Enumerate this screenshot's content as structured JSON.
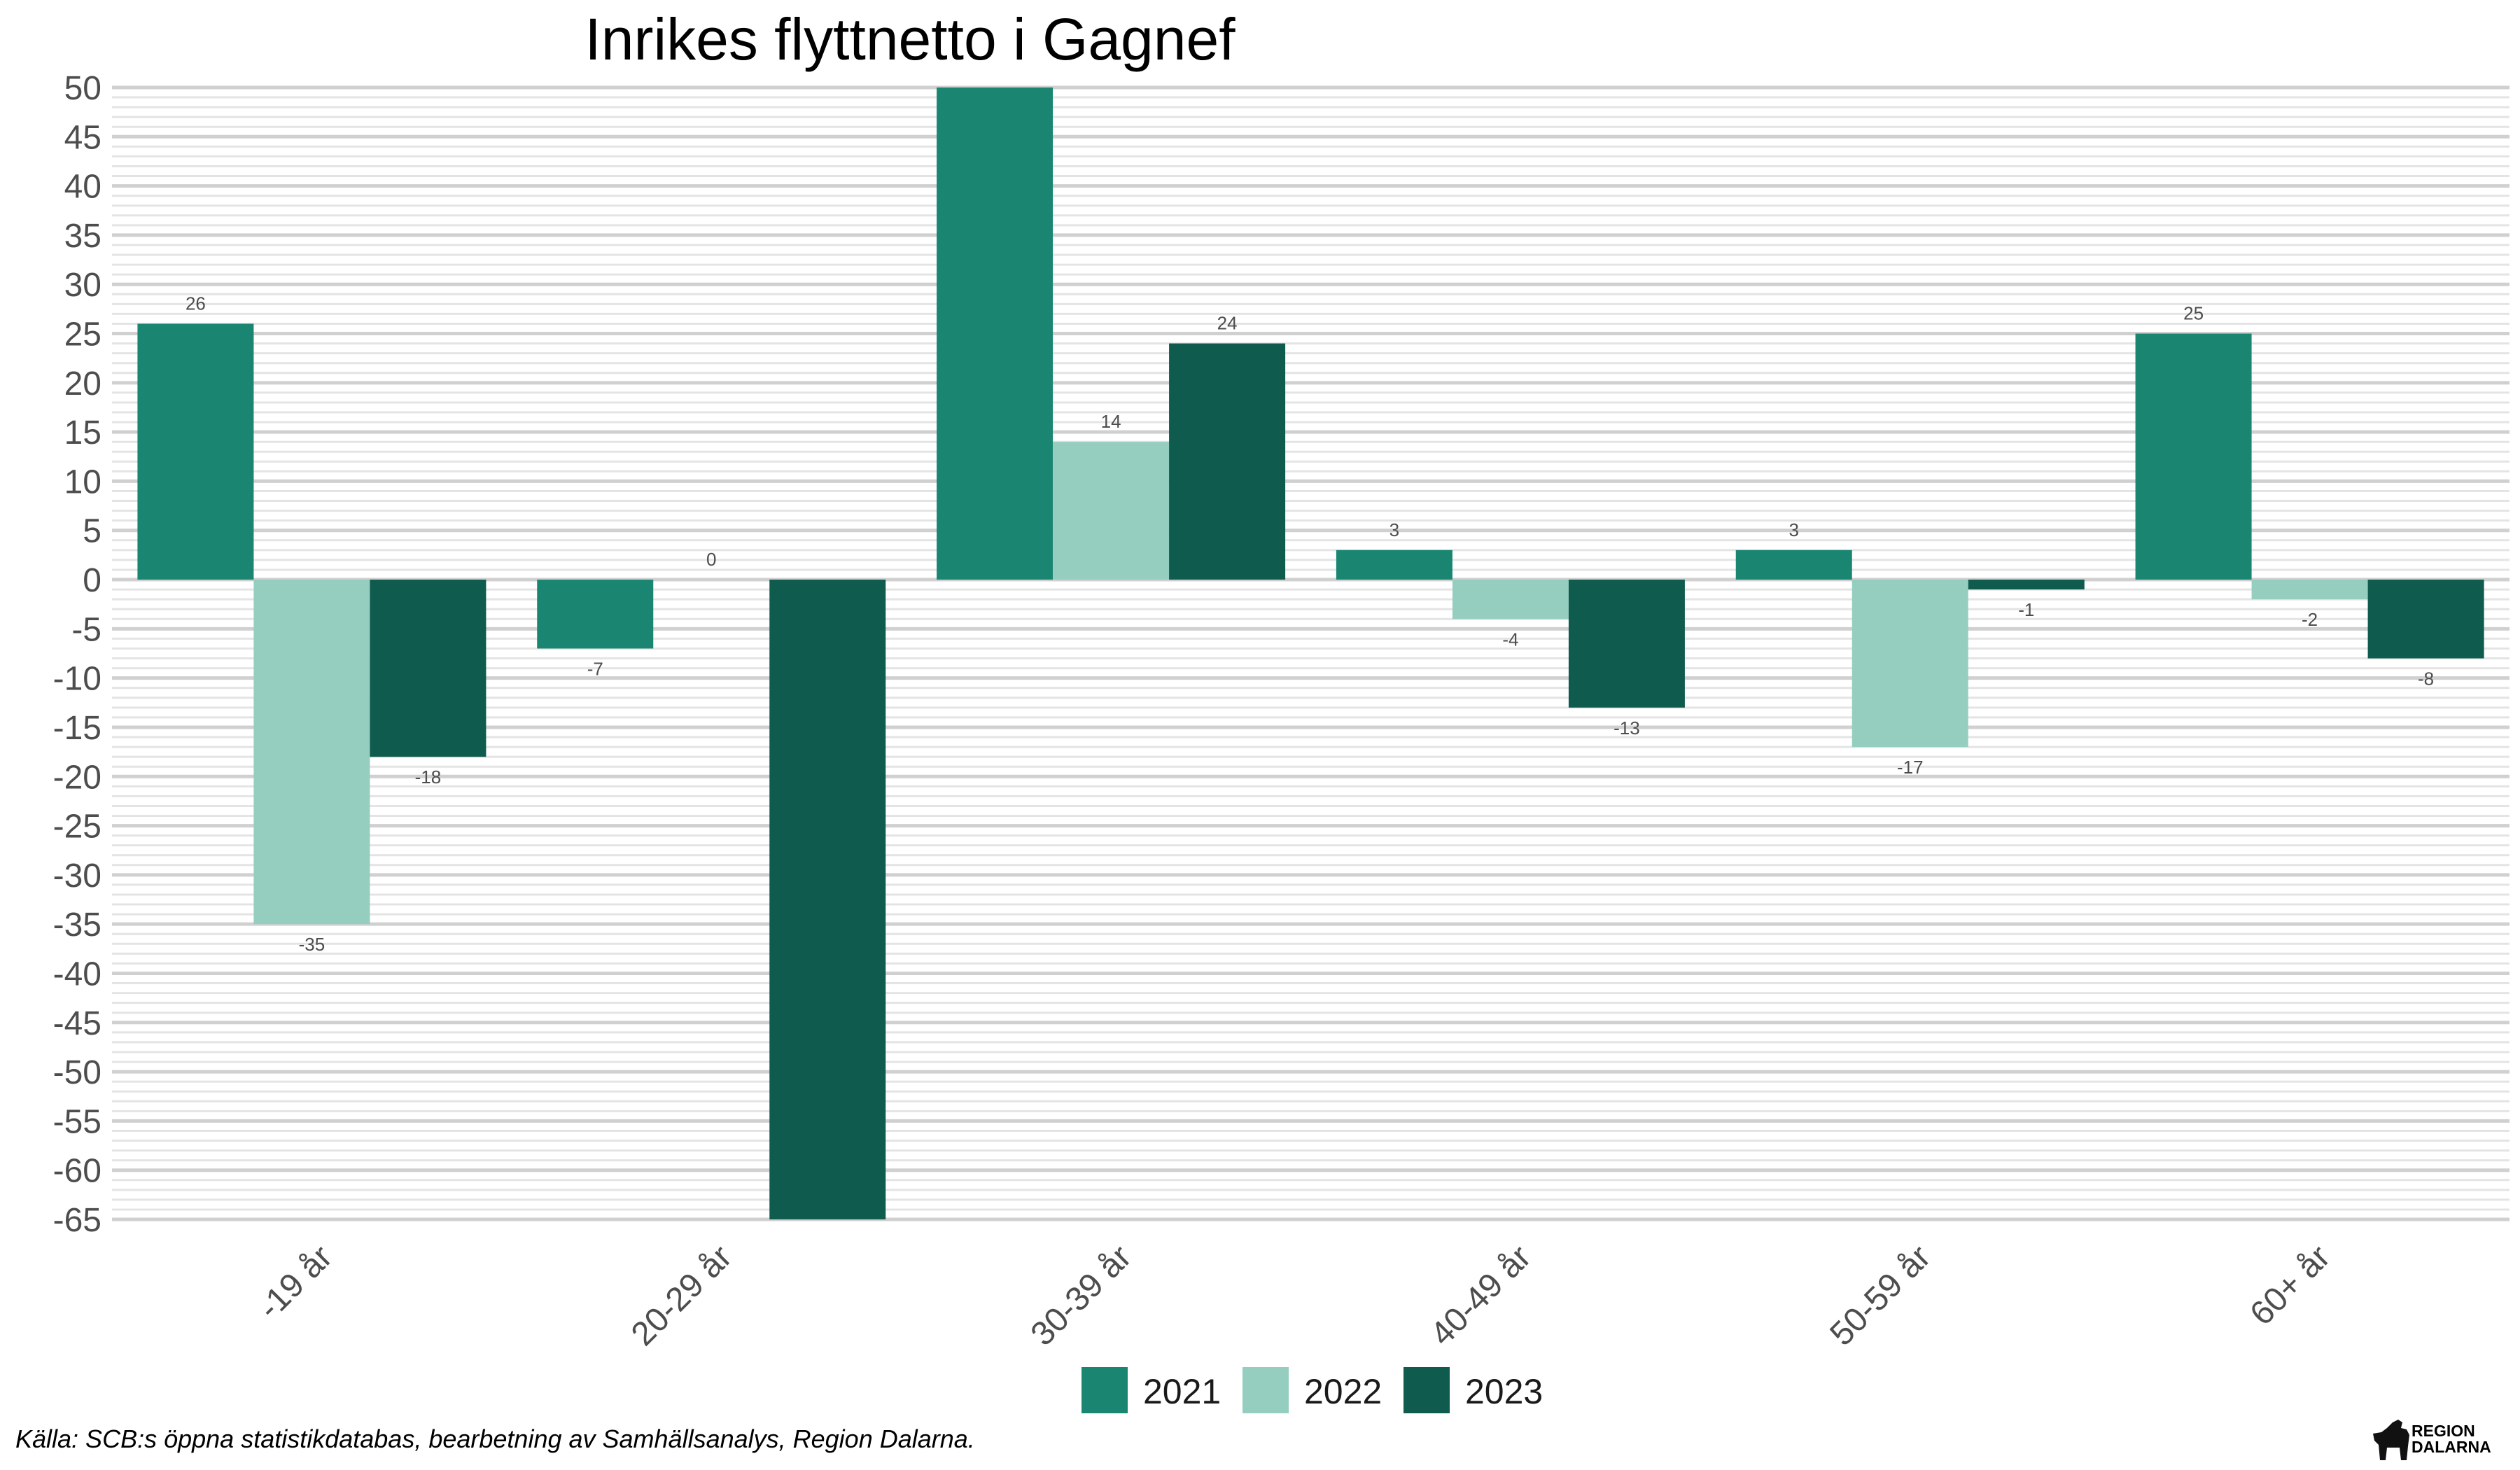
{
  "chart_data": {
    "type": "bar",
    "title": "Inrikes flyttnetto i Gagnef",
    "xlabel": "",
    "ylabel": "",
    "categories": [
      "-19 år",
      "20-29 år",
      "30-39 år",
      "40-49 år",
      "50-59 år",
      "60+ år"
    ],
    "series": [
      {
        "name": "2021",
        "color": "#1a8672",
        "values": [
          26,
          -7,
          50,
          3,
          3,
          25
        ]
      },
      {
        "name": "2022",
        "color": "#95cebf",
        "values": [
          -35,
          0,
          14,
          -4,
          -17,
          -2
        ]
      },
      {
        "name": "2023",
        "color": "#0f5b4e",
        "values": [
          -18,
          -65,
          24,
          -13,
          -1,
          -8
        ]
      }
    ],
    "ylim": [
      -65,
      50
    ],
    "yticks": [
      50,
      45,
      40,
      35,
      30,
      25,
      20,
      15,
      10,
      5,
      0,
      -5,
      -10,
      -15,
      -20,
      -25,
      -30,
      -35,
      -40,
      -45,
      -50,
      -55,
      -60,
      -65
    ],
    "data_labels": [
      [
        "26",
        "-7",
        "",
        "3",
        "3",
        "25"
      ],
      [
        "-35",
        "0",
        "14",
        "-4",
        "-17",
        "-2"
      ],
      [
        "-18",
        "",
        "24",
        "-13",
        "-1",
        "-8"
      ]
    ],
    "grid": true,
    "legend_position": "bottom"
  },
  "source": "Källa: SCB:s öppna statistikdatabas, bearbetning av Samhällsanalys, Region Dalarna.",
  "logo": {
    "line1": "REGION",
    "line2": "DALARNA"
  }
}
